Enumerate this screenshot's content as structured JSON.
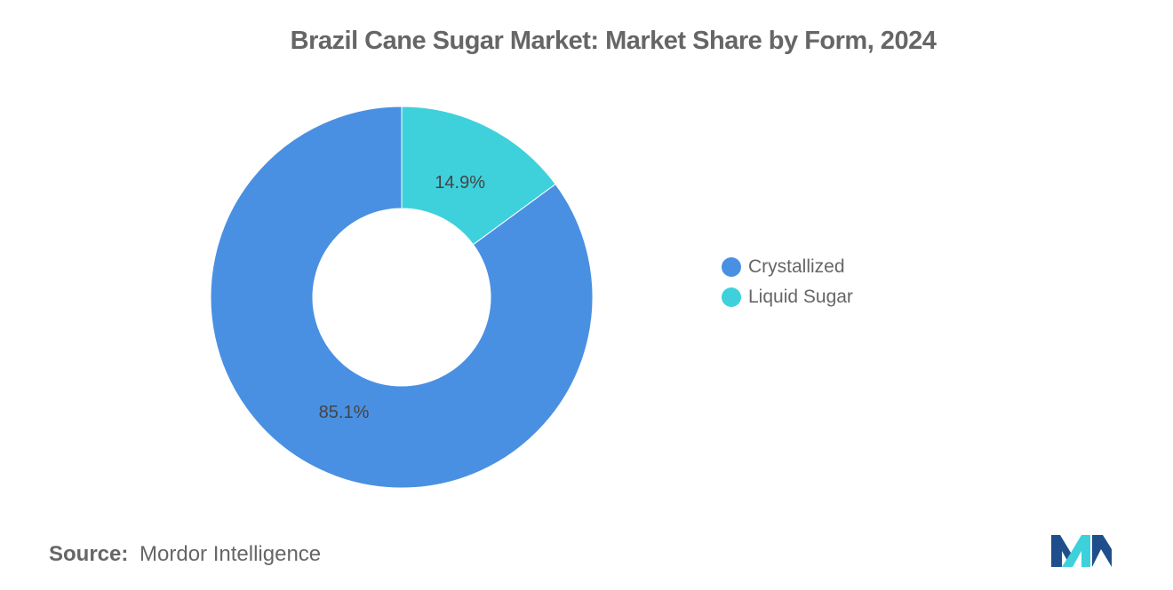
{
  "chart_data": {
    "type": "pie",
    "title": "Brazil Cane Sugar Market: Market Share by Form, 2024",
    "donut": true,
    "categories": [
      "Crystallized",
      "Liquid Sugar"
    ],
    "values": [
      85.1,
      14.9
    ],
    "value_labels": [
      "85.1%",
      "14.9%"
    ],
    "colors": [
      "#4a90e2",
      "#3ed1dc"
    ],
    "legend_position": "right",
    "legend": [
      "Crystallized",
      "Liquid Sugar"
    ]
  },
  "source": {
    "label": "Source:",
    "text": "Mordor Intelligence"
  },
  "logo": {
    "icon": "mordor-intelligence-logo",
    "colors": [
      "#1f4e8c",
      "#3ed1dc"
    ]
  }
}
